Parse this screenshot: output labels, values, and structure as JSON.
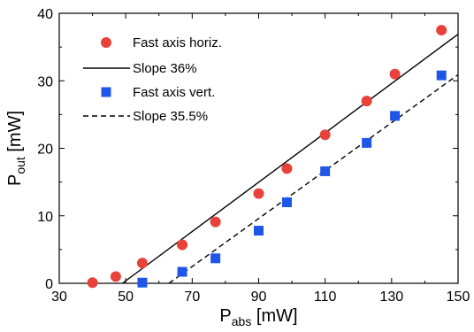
{
  "chart_data": {
    "type": "scatter",
    "xlabel": {
      "base": "P",
      "sub": "abs",
      "unit": " [mW]"
    },
    "ylabel": {
      "base": "P",
      "sub": "out",
      "unit": " [mW]"
    },
    "xlim": [
      30,
      150
    ],
    "ylim": [
      0,
      40
    ],
    "xticks": [
      30,
      50,
      70,
      90,
      110,
      130,
      150
    ],
    "yticks": [
      0,
      10,
      20,
      30,
      40
    ],
    "grid": false,
    "legend_position": "top-left",
    "series": [
      {
        "name": "Fast axis horiz.",
        "kind": "points",
        "marker": "circle",
        "color": "#e8423a",
        "x": [
          40,
          47,
          55,
          67,
          77,
          90,
          98.5,
          110,
          122.5,
          131,
          145
        ],
        "y": [
          0.1,
          1.0,
          3.0,
          5.7,
          9.1,
          13.3,
          17.0,
          22.0,
          27.0,
          31.0,
          37.5
        ]
      },
      {
        "name": "Slope 36%",
        "kind": "line",
        "dash": "solid",
        "color": "#000000",
        "x": [
          49,
          150
        ],
        "y": [
          0,
          36.9
        ]
      },
      {
        "name": "Fast axis vert.",
        "kind": "points",
        "marker": "square",
        "color": "#1f56e8",
        "x": [
          55,
          67,
          77,
          90,
          98.5,
          110,
          122.5,
          131,
          145
        ],
        "y": [
          0.1,
          1.7,
          3.7,
          7.8,
          12.0,
          16.6,
          20.8,
          24.8,
          30.8
        ]
      },
      {
        "name": "Slope 35.5%",
        "kind": "line",
        "dash": "dashed",
        "color": "#000000",
        "x": [
          63,
          150
        ],
        "y": [
          0,
          30.9
        ]
      }
    ]
  }
}
